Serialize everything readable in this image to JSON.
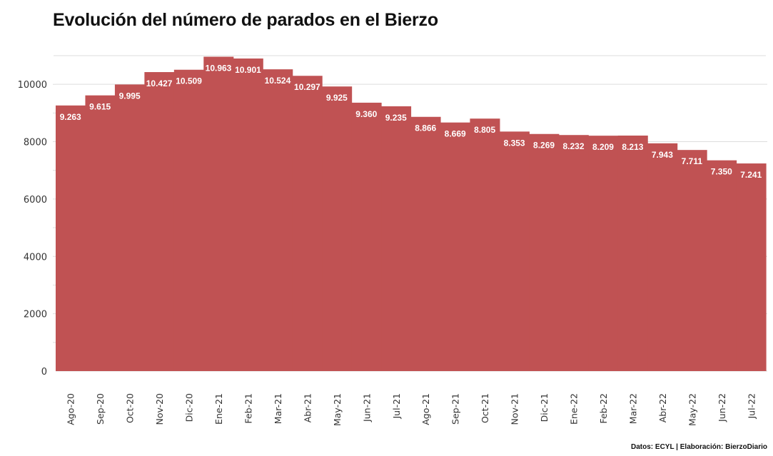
{
  "title": "Evolución del número de parados en el Bierzo",
  "source": "Datos: ECYL | Elaboración: BierzoDiario",
  "colors": {
    "bar": "#c05253",
    "gridline": "#dddddd",
    "text": "#333333"
  },
  "chart_data": {
    "type": "bar",
    "title": "Evolución del número de parados en el Bierzo",
    "xlabel": "",
    "ylabel": "",
    "ylim": [
      0,
      11000
    ],
    "yticks": [
      0,
      2000,
      4000,
      6000,
      8000,
      10000
    ],
    "grid": true,
    "categories": [
      "Ago-20",
      "Sep-20",
      "Oct-20",
      "Nov-20",
      "Dic-20",
      "Ene-21",
      "Feb-21",
      "Mar-21",
      "Abr-21",
      "May-21",
      "Jun-21",
      "Jul-21",
      "Ago-21",
      "Sep-21",
      "Oct-21",
      "Nov-21",
      "Dic-21",
      "Ene-22",
      "Feb-22",
      "Mar-22",
      "Abr-22",
      "May-22",
      "Jun-22",
      "Jul-22"
    ],
    "values": [
      9263,
      9615,
      9995,
      10427,
      10509,
      10963,
      10901,
      10524,
      10297,
      9925,
      9360,
      9235,
      8866,
      8669,
      8805,
      8353,
      8269,
      8232,
      8209,
      8213,
      7943,
      7711,
      7350,
      7241
    ],
    "labels": [
      "9.263",
      "9.615",
      "9.995",
      "10.427",
      "10.509",
      "10.963",
      "10.901",
      "10.524",
      "10.297",
      "9.925",
      "9.360",
      "9.235",
      "8.866",
      "8.669",
      "8.805",
      "8.353",
      "8.269",
      "8.232",
      "8.209",
      "8.213",
      "7.943",
      "7.711",
      "7.350",
      "7.241"
    ]
  }
}
